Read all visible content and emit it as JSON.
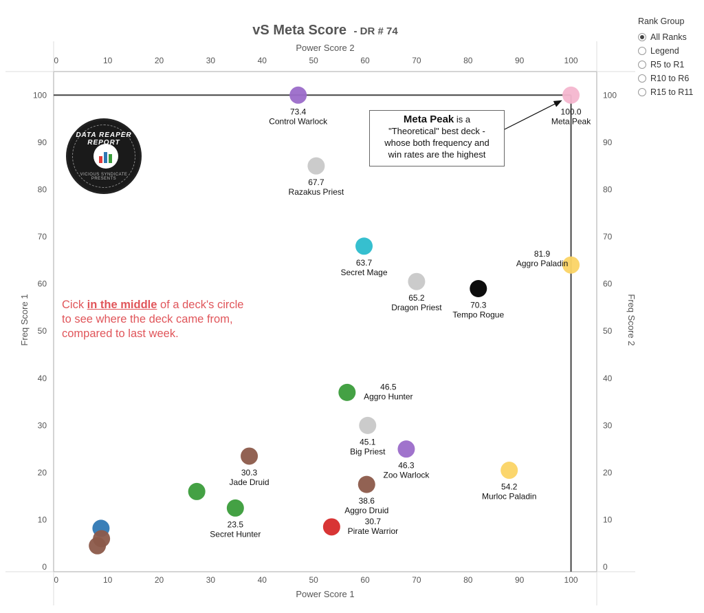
{
  "chart_data": {
    "type": "scatter",
    "title": "vS Meta Score",
    "subtitle": "- DR # 74",
    "xlabel_bottom": "Power Score 1",
    "xlabel_top": "Power Score 2",
    "ylabel_left": "Freq Score 1",
    "ylabel_right": "Freq Score 2",
    "xlim": [
      -0.5,
      105
    ],
    "ylim": [
      -1,
      105
    ],
    "xticks": [
      0,
      10,
      20,
      30,
      40,
      50,
      60,
      70,
      80,
      90,
      100
    ],
    "yticks": [
      0,
      10,
      20,
      30,
      40,
      50,
      60,
      70,
      80,
      90,
      100
    ],
    "reference_lines": {
      "y": 100,
      "x": 100
    },
    "points": [
      {
        "name": "Meta Peak",
        "score": "100.0",
        "x": 100,
        "y": 100,
        "color": "#f4b6cf",
        "label": "below"
      },
      {
        "name": "Control Warlock",
        "score": "73.4",
        "x": 47,
        "y": 100,
        "color": "#9b6cc9",
        "label": "below"
      },
      {
        "name": "Razakus Priest",
        "score": "67.7",
        "x": 50.5,
        "y": 85,
        "color": "#c8c8c8",
        "label": "below"
      },
      {
        "name": "Secret Mage",
        "score": "63.7",
        "x": 59.8,
        "y": 68,
        "color": "#2bbccc",
        "label": "below"
      },
      {
        "name": "Dragon Priest",
        "score": "65.2",
        "x": 70,
        "y": 60.5,
        "color": "#c8c8c8",
        "label": "below"
      },
      {
        "name": "Tempo Rogue",
        "score": "70.3",
        "x": 82,
        "y": 59,
        "color": "#000000",
        "label": "below"
      },
      {
        "name": "Aggro Paladin",
        "score": "81.9",
        "x": 100,
        "y": 64,
        "color": "#fbd465",
        "label": "left"
      },
      {
        "name": "Aggro Hunter",
        "score": "46.5",
        "x": 56.5,
        "y": 37,
        "color": "#3a9c3a",
        "label": "right"
      },
      {
        "name": "Big Priest",
        "score": "45.1",
        "x": 60.5,
        "y": 30,
        "color": "#c8c8c8",
        "label": "below"
      },
      {
        "name": "Zoo Warlock",
        "score": "46.3",
        "x": 68,
        "y": 25,
        "color": "#9b6cc9",
        "label": "below"
      },
      {
        "name": "Jade Druid",
        "score": "30.3",
        "x": 37.5,
        "y": 23.5,
        "color": "#8c5a4a",
        "label": "below"
      },
      {
        "name": "Murloc Paladin",
        "score": "54.2",
        "x": 88,
        "y": 20.5,
        "color": "#fbd465",
        "label": "below"
      },
      {
        "name": "Aggro Druid",
        "score": "38.6",
        "x": 60.3,
        "y": 17.5,
        "color": "#8c5a4a",
        "label": "below"
      },
      {
        "name": "",
        "score": "",
        "x": 27.3,
        "y": 16,
        "color": "#3a9c3a",
        "label": "none"
      },
      {
        "name": "Secret Hunter",
        "score": "23.5",
        "x": 34.8,
        "y": 12.5,
        "color": "#3a9c3a",
        "label": "below"
      },
      {
        "name": "Pirate Warrior",
        "score": "30.7",
        "x": 53.5,
        "y": 8.5,
        "color": "#d62a2a",
        "label": "right"
      },
      {
        "name": "",
        "score": "",
        "x": 8.7,
        "y": 8.2,
        "color": "#2f78b4",
        "label": "none"
      },
      {
        "name": "",
        "score": "",
        "x": 8.8,
        "y": 6.0,
        "color": "#8c5a4a",
        "label": "none"
      },
      {
        "name": "",
        "score": "",
        "x": 8.0,
        "y": 4.5,
        "color": "#8c5a4a",
        "label": "none"
      }
    ]
  },
  "legend": {
    "title": "Rank Group",
    "options": [
      {
        "label": "All Ranks",
        "selected": true
      },
      {
        "label": "Legend",
        "selected": false
      },
      {
        "label": "R5 to R1",
        "selected": false
      },
      {
        "label": "R10 to R6",
        "selected": false
      },
      {
        "label": "R15 to R11",
        "selected": false
      }
    ]
  },
  "note": {
    "before": "Cick ",
    "emph": "in the middle",
    "after": " of a deck's circle to see where the deck came from, compared to last week."
  },
  "callout": {
    "bold": "Meta Peak",
    "line1": " is a",
    "line2": "\"Theoretical\" best deck -",
    "line3": "whose both frequency and",
    "line4": "win rates are the highest"
  },
  "logo": {
    "top_text": "DATA REAPER REPORT",
    "bottom_text": "VICIOUS SYNDICATE PRESENTS"
  }
}
